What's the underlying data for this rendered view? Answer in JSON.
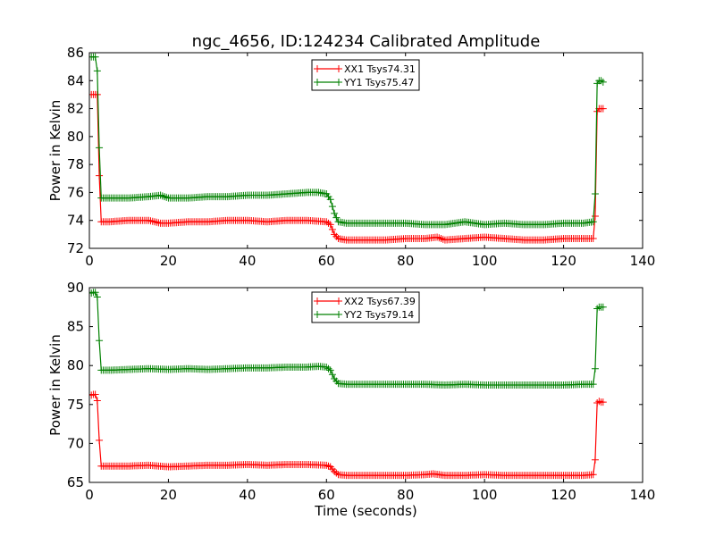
{
  "chart_data": [
    {
      "type": "line",
      "title": "ngc_4656, ID:124234 Calibrated Amplitude",
      "xlabel": "",
      "ylabel": "Power in Kelvin",
      "xlim": [
        0,
        140
      ],
      "ylim": [
        72,
        86
      ],
      "xticks": [
        0,
        20,
        40,
        60,
        80,
        100,
        120,
        140
      ],
      "yticks": [
        72,
        74,
        76,
        78,
        80,
        82,
        84,
        86
      ],
      "grid": false,
      "legend_position": "top-center",
      "series": [
        {
          "name": "XX1 Tsys74.31",
          "color": "#ff0000",
          "marker": "+",
          "points": [
            [
              0.5,
              83.0
            ],
            [
              1.0,
              83.0
            ],
            [
              1.5,
              83.0
            ],
            [
              2.0,
              83.0
            ],
            [
              2.5,
              77.2
            ],
            [
              3.0,
              73.9
            ],
            [
              5,
              73.9
            ],
            [
              10,
              74.0
            ],
            [
              15,
              74.0
            ],
            [
              18,
              73.8
            ],
            [
              20,
              73.8
            ],
            [
              25,
              73.9
            ],
            [
              30,
              73.9
            ],
            [
              35,
              74.0
            ],
            [
              40,
              74.0
            ],
            [
              45,
              73.9
            ],
            [
              50,
              74.0
            ],
            [
              55,
              74.0
            ],
            [
              60,
              73.9
            ],
            [
              61,
              73.7
            ],
            [
              62,
              73.0
            ],
            [
              63,
              72.7
            ],
            [
              65,
              72.6
            ],
            [
              70,
              72.6
            ],
            [
              75,
              72.6
            ],
            [
              80,
              72.7
            ],
            [
              85,
              72.7
            ],
            [
              88,
              72.8
            ],
            [
              90,
              72.6
            ],
            [
              95,
              72.7
            ],
            [
              100,
              72.8
            ],
            [
              105,
              72.7
            ],
            [
              110,
              72.6
            ],
            [
              115,
              72.6
            ],
            [
              120,
              72.7
            ],
            [
              125,
              72.7
            ],
            [
              127.5,
              72.7
            ],
            [
              128,
              74.3
            ],
            [
              128.5,
              81.8
            ],
            [
              129,
              82.0
            ],
            [
              129.5,
              82.0
            ],
            [
              130,
              82.0
            ]
          ]
        },
        {
          "name": "YY1 Tsys75.47",
          "color": "#008000",
          "marker": "+",
          "points": [
            [
              0.5,
              85.7
            ],
            [
              1.0,
              85.7
            ],
            [
              1.5,
              85.7
            ],
            [
              2.0,
              84.7
            ],
            [
              2.5,
              79.2
            ],
            [
              3.0,
              75.6
            ],
            [
              5,
              75.6
            ],
            [
              10,
              75.6
            ],
            [
              15,
              75.7
            ],
            [
              18,
              75.8
            ],
            [
              20,
              75.6
            ],
            [
              25,
              75.6
            ],
            [
              30,
              75.7
            ],
            [
              35,
              75.7
            ],
            [
              40,
              75.8
            ],
            [
              45,
              75.8
            ],
            [
              50,
              75.9
            ],
            [
              55,
              76.0
            ],
            [
              58,
              76.0
            ],
            [
              60,
              75.9
            ],
            [
              61,
              75.5
            ],
            [
              62,
              74.5
            ],
            [
              63,
              73.9
            ],
            [
              65,
              73.8
            ],
            [
              70,
              73.8
            ],
            [
              75,
              73.8
            ],
            [
              80,
              73.8
            ],
            [
              85,
              73.7
            ],
            [
              90,
              73.7
            ],
            [
              95,
              73.9
            ],
            [
              100,
              73.7
            ],
            [
              105,
              73.8
            ],
            [
              110,
              73.7
            ],
            [
              115,
              73.7
            ],
            [
              120,
              73.8
            ],
            [
              125,
              73.8
            ],
            [
              127.5,
              73.9
            ],
            [
              128,
              75.9
            ],
            [
              128.5,
              83.8
            ],
            [
              129,
              84.0
            ],
            [
              129.5,
              84.0
            ],
            [
              130,
              83.9
            ]
          ]
        }
      ]
    },
    {
      "type": "line",
      "title": "",
      "xlabel": "Time (seconds)",
      "ylabel": "Power in Kelvin",
      "xlim": [
        0,
        140
      ],
      "ylim": [
        65,
        90
      ],
      "xticks": [
        0,
        20,
        40,
        60,
        80,
        100,
        120,
        140
      ],
      "yticks": [
        65,
        70,
        75,
        80,
        85,
        90
      ],
      "grid": false,
      "legend_position": "top-center",
      "series": [
        {
          "name": "XX2 Tsys67.39",
          "color": "#ff0000",
          "marker": "+",
          "points": [
            [
              0.5,
              76.2
            ],
            [
              1.0,
              76.3
            ],
            [
              1.5,
              76.3
            ],
            [
              2.0,
              75.5
            ],
            [
              2.5,
              70.4
            ],
            [
              3.0,
              67.1
            ],
            [
              5,
              67.1
            ],
            [
              10,
              67.1
            ],
            [
              15,
              67.2
            ],
            [
              20,
              67.0
            ],
            [
              25,
              67.1
            ],
            [
              30,
              67.2
            ],
            [
              35,
              67.2
            ],
            [
              40,
              67.3
            ],
            [
              45,
              67.2
            ],
            [
              50,
              67.3
            ],
            [
              55,
              67.3
            ],
            [
              60,
              67.2
            ],
            [
              61,
              67.0
            ],
            [
              62,
              66.4
            ],
            [
              63,
              66.0
            ],
            [
              65,
              65.9
            ],
            [
              70,
              65.9
            ],
            [
              75,
              65.9
            ],
            [
              80,
              65.9
            ],
            [
              85,
              66.0
            ],
            [
              87,
              66.1
            ],
            [
              90,
              65.9
            ],
            [
              95,
              65.9
            ],
            [
              100,
              66.0
            ],
            [
              105,
              65.9
            ],
            [
              110,
              65.9
            ],
            [
              115,
              65.9
            ],
            [
              120,
              65.9
            ],
            [
              125,
              65.9
            ],
            [
              127.5,
              66.0
            ],
            [
              128,
              67.9
            ],
            [
              128.5,
              75.2
            ],
            [
              129,
              75.4
            ],
            [
              129.5,
              75.3
            ],
            [
              130,
              75.3
            ]
          ]
        },
        {
          "name": "YY2 Tsys79.14",
          "color": "#008000",
          "marker": "+",
          "points": [
            [
              0.5,
              89.3
            ],
            [
              1.0,
              89.4
            ],
            [
              1.5,
              89.4
            ],
            [
              2.0,
              88.8
            ],
            [
              2.5,
              83.2
            ],
            [
              3.0,
              79.4
            ],
            [
              5,
              79.4
            ],
            [
              10,
              79.5
            ],
            [
              15,
              79.6
            ],
            [
              20,
              79.5
            ],
            [
              25,
              79.6
            ],
            [
              30,
              79.5
            ],
            [
              35,
              79.6
            ],
            [
              40,
              79.7
            ],
            [
              45,
              79.7
            ],
            [
              50,
              79.8
            ],
            [
              55,
              79.8
            ],
            [
              58,
              79.9
            ],
            [
              60,
              79.8
            ],
            [
              61,
              79.4
            ],
            [
              62,
              78.3
            ],
            [
              63,
              77.7
            ],
            [
              65,
              77.6
            ],
            [
              70,
              77.6
            ],
            [
              75,
              77.6
            ],
            [
              80,
              77.6
            ],
            [
              85,
              77.6
            ],
            [
              90,
              77.5
            ],
            [
              95,
              77.6
            ],
            [
              100,
              77.5
            ],
            [
              105,
              77.5
            ],
            [
              110,
              77.5
            ],
            [
              115,
              77.5
            ],
            [
              120,
              77.5
            ],
            [
              125,
              77.6
            ],
            [
              127.5,
              77.6
            ],
            [
              128,
              79.6
            ],
            [
              128.5,
              87.3
            ],
            [
              129,
              87.5
            ],
            [
              129.5,
              87.5
            ],
            [
              130,
              87.5
            ]
          ]
        }
      ]
    }
  ]
}
